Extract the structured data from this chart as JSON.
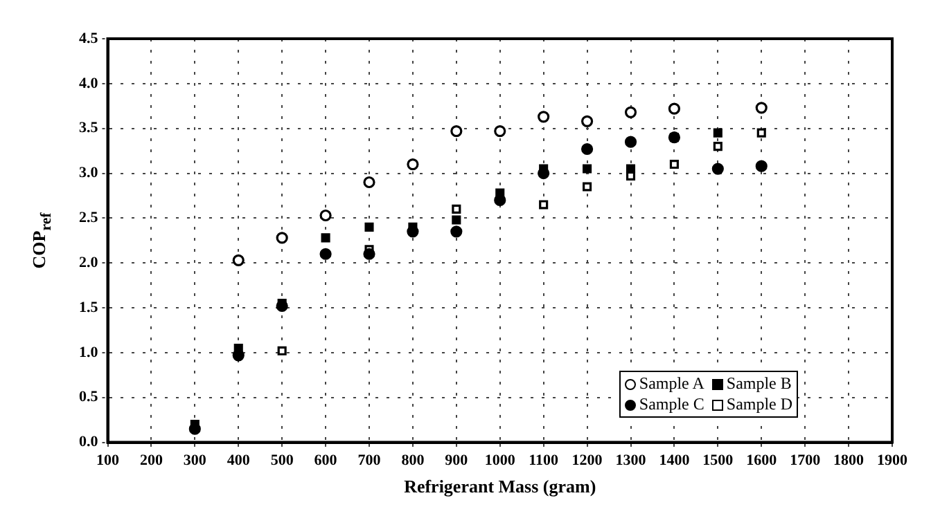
{
  "chart_data": {
    "type": "scatter",
    "xlabel": "Refrigerant Mass (gram)",
    "ylabel": "COP$_{ref}$",
    "xlim": [
      100,
      1900
    ],
    "xticks": [
      100,
      200,
      300,
      400,
      500,
      600,
      700,
      800,
      900,
      1000,
      1100,
      1200,
      1300,
      1400,
      1500,
      1600,
      1700,
      1800,
      1900
    ],
    "ylim": [
      0,
      4.5
    ],
    "yticks": [
      {
        "value": 0,
        "label": "0.0"
      },
      0.5,
      {
        "value": 1,
        "label": "1.0"
      },
      1.5,
      {
        "value": 2,
        "label": "2.0"
      },
      2.5,
      {
        "value": 3,
        "label": "3.0"
      },
      3.5,
      {
        "value": 4,
        "label": "4.0"
      },
      4.5
    ],
    "grid": true,
    "legend": "bottom right",
    "series": [
      {
        "name": "Sample A",
        "color": "#ffffff",
        "marker": "circle",
        "x": [
          400,
          500,
          600,
          700,
          800,
          900,
          1000,
          1100,
          1200,
          1300,
          1400,
          1600
        ],
        "values": [
          2.03,
          2.28,
          2.53,
          2.9,
          3.1,
          3.47,
          3.47,
          3.63,
          3.58,
          3.68,
          3.72,
          3.73
        ]
      },
      {
        "name": "Sample B",
        "color": "#000000",
        "marker": "square",
        "x": [
          300,
          400,
          500,
          600,
          700,
          800,
          900,
          1000,
          1100,
          1200,
          1300,
          1400,
          1500
        ],
        "values": [
          0.2,
          1.05,
          1.55,
          2.28,
          2.4,
          2.4,
          2.48,
          2.78,
          3.05,
          3.05,
          3.05,
          3.4,
          3.45
        ]
      },
      {
        "name": "Sample C",
        "color": "#000000",
        "marker": "circle",
        "x": [
          300,
          400,
          500,
          600,
          700,
          800,
          900,
          1000,
          1100,
          1200,
          1300,
          1400,
          1500,
          1600
        ],
        "values": [
          0.15,
          0.97,
          1.52,
          2.1,
          2.1,
          2.35,
          2.35,
          2.7,
          3.0,
          3.27,
          3.35,
          3.4,
          3.05,
          3.08
        ]
      },
      {
        "name": "Sample D",
        "color": "#ffffff",
        "marker": "square",
        "x": [
          500,
          700,
          900,
          1100,
          1200,
          1300,
          1400,
          1500,
          1600
        ],
        "values": [
          1.02,
          2.15,
          2.6,
          2.65,
          2.85,
          2.97,
          3.1,
          3.3,
          3.45
        ]
      }
    ]
  }
}
